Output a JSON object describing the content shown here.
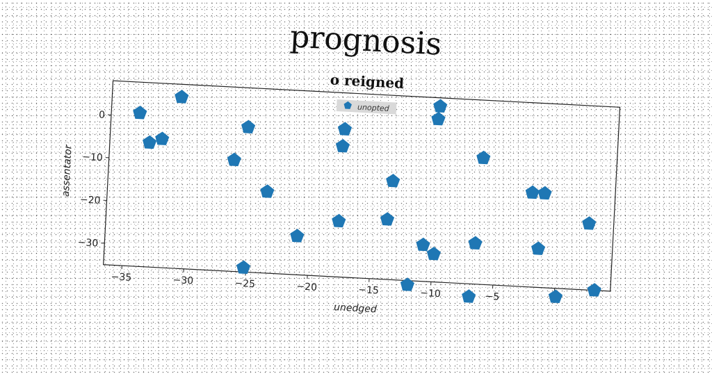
{
  "chart_data": {
    "type": "scatter",
    "suptitle": "prognosis",
    "title": "o reigned",
    "xlabel": "unedged",
    "ylabel": "assentator",
    "xlim": [
      -36.5,
      4.5
    ],
    "ylim": [
      -35,
      8
    ],
    "xticks": [
      -35,
      -30,
      -25,
      -20,
      -15,
      -10,
      -5,
      0
    ],
    "yticks": [
      0,
      -10,
      -20,
      -30
    ],
    "grid": false,
    "legend_position": "top-center",
    "marker": "pentagon",
    "color": "#1f77b4",
    "series": [
      {
        "name": "unopted",
        "points": [
          [
            -34.2,
            0.8
          ],
          [
            -30.9,
            5.0
          ],
          [
            -33.3,
            -6.0
          ],
          [
            -32.3,
            -5.0
          ],
          [
            -25.4,
            -1.2
          ],
          [
            -26.4,
            -9.0
          ],
          [
            -23.6,
            -16.0
          ],
          [
            -21.0,
            -26.0
          ],
          [
            -25.2,
            -34.0
          ],
          [
            -17.6,
            -0.5
          ],
          [
            -17.7,
            -4.5
          ],
          [
            -17.7,
            -22.0
          ],
          [
            -13.5,
            -12.0
          ],
          [
            -13.8,
            -21.0
          ],
          [
            -10.0,
            6.0
          ],
          [
            -10.1,
            3.0
          ],
          [
            -11.9,
            -36.0
          ],
          [
            -10.8,
            -26.5
          ],
          [
            -9.9,
            -28.5
          ],
          [
            -6.3,
            -5.5
          ],
          [
            -6.6,
            -25.5
          ],
          [
            -6.9,
            -38.0
          ],
          [
            -2.2,
            -13.0
          ],
          [
            -1.2,
            -13.0
          ],
          [
            -1.5,
            -26.0
          ],
          [
            2.5,
            -19.5
          ],
          [
            3.2,
            -35.0
          ],
          [
            0.1,
            -37.0
          ]
        ]
      }
    ]
  }
}
